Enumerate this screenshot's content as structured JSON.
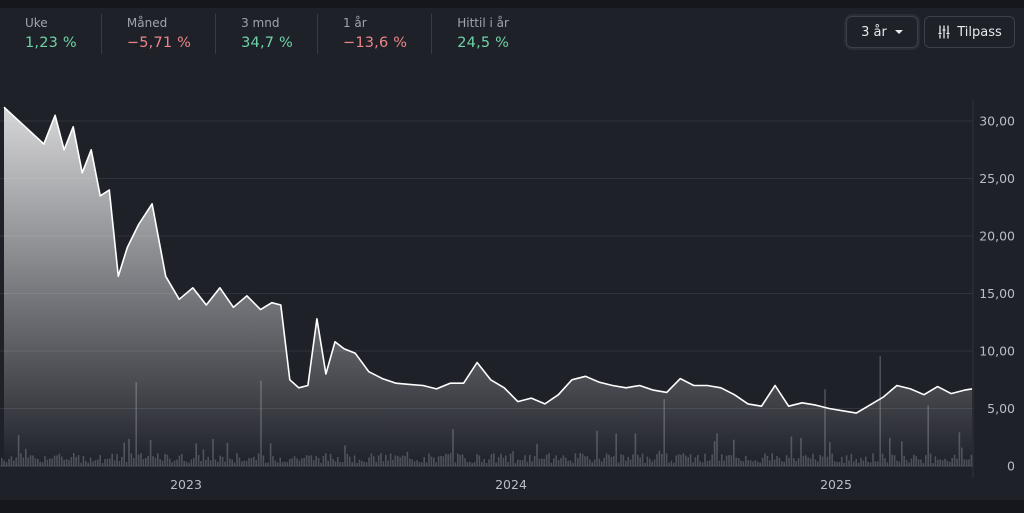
{
  "stats": [
    {
      "label": "Uke",
      "value": "1,23 %",
      "tone": "pos"
    },
    {
      "label": "Måned",
      "value": "−5,71 %",
      "tone": "neg"
    },
    {
      "label": "3 mnd",
      "value": "34,7 %",
      "tone": "pos"
    },
    {
      "label": "1 år",
      "value": "−13,6 %",
      "tone": "neg"
    },
    {
      "label": "Hittil i år",
      "value": "24,5 %",
      "tone": "pos"
    }
  ],
  "controls": {
    "period_label": "3 år",
    "adjust_label": "Tilpass"
  },
  "colors": {
    "positive": "#6fd2a6",
    "negative": "#ec8587",
    "line": "#ffffff",
    "volume": "#5c5f67"
  },
  "chart_data": {
    "type": "line",
    "title": "",
    "xlabel": "",
    "ylabel": "",
    "x_ticks": [
      "2023",
      "2024",
      "2025"
    ],
    "y_ticks": [
      "0",
      "5,00",
      "10,00",
      "15,00",
      "20,00",
      "25,00",
      "30,00"
    ],
    "ylim": [
      0,
      32
    ],
    "xlim": [
      "2022-07",
      "2025-06"
    ],
    "grid": true,
    "series": [
      {
        "x": [
          "2022-07",
          "2022-07",
          "2022-08",
          "2022-08",
          "2022-08",
          "2022-09",
          "2022-09",
          "2022-09",
          "2022-10",
          "2022-10",
          "2022-10",
          "2022-11",
          "2022-11",
          "2022-12",
          "2022-12",
          "2023-01",
          "2023-01",
          "2023-02",
          "2023-02",
          "2023-03",
          "2023-03",
          "2023-04",
          "2023-04",
          "2023-04",
          "2023-05",
          "2023-05",
          "2023-05",
          "2023-06",
          "2023-06",
          "2023-06",
          "2023-07",
          "2023-07",
          "2023-08",
          "2023-08",
          "2023-09",
          "2023-09",
          "2023-10",
          "2023-10",
          "2023-11",
          "2023-11",
          "2023-12",
          "2023-12",
          "2024-01",
          "2024-01",
          "2024-02",
          "2024-02",
          "2024-03",
          "2024-03",
          "2024-04",
          "2024-04",
          "2024-05",
          "2024-05",
          "2024-06",
          "2024-06",
          "2024-07",
          "2024-07",
          "2024-08",
          "2024-08",
          "2024-09",
          "2024-09",
          "2024-10",
          "2024-10",
          "2024-11",
          "2024-11",
          "2024-12",
          "2024-12",
          "2025-01",
          "2025-01",
          "2025-02",
          "2025-02",
          "2025-03",
          "2025-03",
          "2025-04",
          "2025-04",
          "2025-05",
          "2025-05",
          "2025-06"
        ],
        "values": [
          31.2,
          28.0,
          30.5,
          27.5,
          29.5,
          25.5,
          27.5,
          23.5,
          24.0,
          16.5,
          19.0,
          21.0,
          22.8,
          16.5,
          14.5,
          15.5,
          14.0,
          15.5,
          13.8,
          14.8,
          13.6,
          14.2,
          14.0,
          7.5,
          6.8,
          7.0,
          12.8,
          8.0,
          10.8,
          10.2,
          9.8,
          8.2,
          7.6,
          7.2,
          7.1,
          7.0,
          6.7,
          7.2,
          7.2,
          9.0,
          7.5,
          6.8,
          5.6,
          5.9,
          5.4,
          6.2,
          7.5,
          7.8,
          7.3,
          7.0,
          6.8,
          7.0,
          6.6,
          6.4,
          7.6,
          7.0,
          7.0,
          6.8,
          6.2,
          5.4,
          5.2,
          7.0,
          5.2,
          5.5,
          5.3,
          5.0,
          4.8,
          4.6,
          5.3,
          6.0,
          7.0,
          6.7,
          6.2,
          6.9,
          6.3,
          6.6,
          6.7
        ]
      }
    ]
  }
}
